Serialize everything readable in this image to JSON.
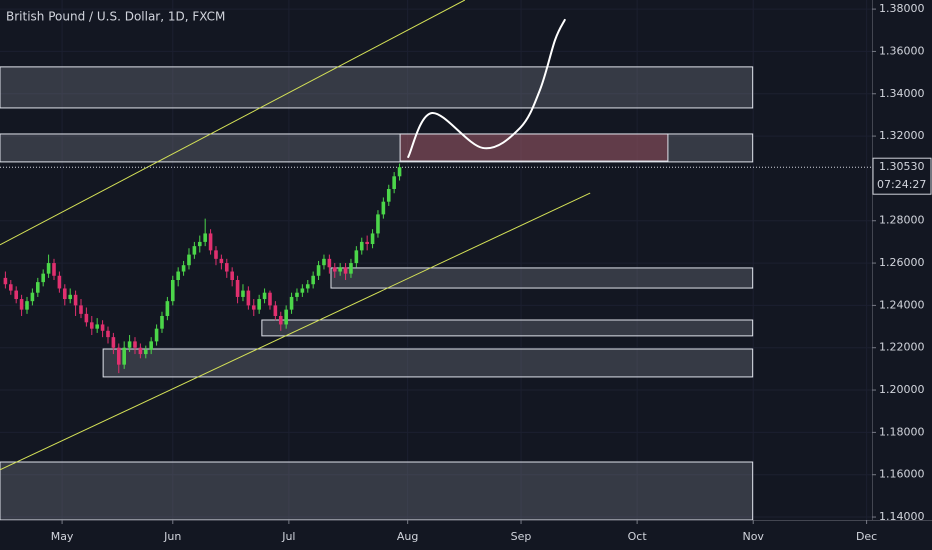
{
  "chart_data": {
    "type": "candlestick",
    "title": "British Pound / U.S. Dollar, 1D, FXCM",
    "ylim": [
      1.1386,
      1.3843
    ],
    "xlim": [
      0,
      161.5
    ],
    "grid": true,
    "up_color": "#4cd64a",
    "down_color": "#e0306f",
    "yticks": [
      {
        "value": 1.38,
        "label": "1.38000"
      },
      {
        "value": 1.36,
        "label": "1.36000"
      },
      {
        "value": 1.34,
        "label": "1.34000"
      },
      {
        "value": 1.32,
        "label": "1.32000"
      },
      {
        "value": 1.28,
        "label": "1.28000"
      },
      {
        "value": 1.26,
        "label": "1.26000"
      },
      {
        "value": 1.24,
        "label": "1.24000"
      },
      {
        "value": 1.22,
        "label": "1.22000"
      },
      {
        "value": 1.2,
        "label": "1.20000"
      },
      {
        "value": 1.18,
        "label": "1.18000"
      },
      {
        "value": 1.16,
        "label": "1.16000"
      },
      {
        "value": 1.14,
        "label": "1.14000"
      }
    ],
    "xticks": [
      {
        "value": 11.5,
        "label": "May"
      },
      {
        "value": 32,
        "label": "Jun"
      },
      {
        "value": 53.5,
        "label": "Jul"
      },
      {
        "value": 75.5,
        "label": "Aug"
      },
      {
        "value": 96.5,
        "label": "Sep"
      },
      {
        "value": 118,
        "label": "Oct"
      },
      {
        "value": 139.5,
        "label": "Nov"
      },
      {
        "value": 160.5,
        "label": "Dec"
      }
    ],
    "current_price": {
      "value": 1.3053,
      "label": "1.30530"
    },
    "countdown": "07:24:27",
    "candles": [
      [
        1.253,
        1.256,
        1.248,
        1.25
      ],
      [
        1.25,
        1.252,
        1.245,
        1.247
      ],
      [
        1.247,
        1.249,
        1.241,
        1.243
      ],
      [
        1.243,
        1.245,
        1.235,
        1.238
      ],
      [
        1.238,
        1.244,
        1.236,
        1.242
      ],
      [
        1.242,
        1.248,
        1.24,
        1.246
      ],
      [
        1.246,
        1.253,
        1.244,
        1.251
      ],
      [
        1.251,
        1.257,
        1.249,
        1.255
      ],
      [
        1.255,
        1.264,
        1.253,
        1.26
      ],
      [
        1.26,
        1.262,
        1.252,
        1.254
      ],
      [
        1.254,
        1.256,
        1.246,
        1.248
      ],
      [
        1.248,
        1.25,
        1.24,
        1.243
      ],
      [
        1.243,
        1.248,
        1.241,
        1.245
      ],
      [
        1.245,
        1.247,
        1.235,
        1.24
      ],
      [
        1.24,
        1.243,
        1.234,
        1.236
      ],
      [
        1.236,
        1.239,
        1.23,
        1.232
      ],
      [
        1.232,
        1.235,
        1.226,
        1.229
      ],
      [
        1.229,
        1.234,
        1.227,
        1.231
      ],
      [
        1.231,
        1.233,
        1.225,
        1.228
      ],
      [
        1.228,
        1.23,
        1.222,
        1.225
      ],
      [
        1.225,
        1.227,
        1.217,
        1.22
      ],
      [
        1.22,
        1.222,
        1.208,
        1.212
      ],
      [
        1.212,
        1.223,
        1.21,
        1.22
      ],
      [
        1.22,
        1.226,
        1.218,
        1.223
      ],
      [
        1.223,
        1.225,
        1.217,
        1.22
      ],
      [
        1.22,
        1.222,
        1.215,
        1.217
      ],
      [
        1.217,
        1.221,
        1.215,
        1.219
      ],
      [
        1.219,
        1.225,
        1.217,
        1.223
      ],
      [
        1.223,
        1.231,
        1.221,
        1.229
      ],
      [
        1.229,
        1.237,
        1.227,
        1.235
      ],
      [
        1.235,
        1.244,
        1.233,
        1.242
      ],
      [
        1.242,
        1.254,
        1.24,
        1.252
      ],
      [
        1.252,
        1.258,
        1.249,
        1.256
      ],
      [
        1.256,
        1.261,
        1.254,
        1.259
      ],
      [
        1.259,
        1.267,
        1.257,
        1.264
      ],
      [
        1.264,
        1.27,
        1.262,
        1.268
      ],
      [
        1.268,
        1.273,
        1.265,
        1.27
      ],
      [
        1.27,
        1.281,
        1.268,
        1.274
      ],
      [
        1.274,
        1.276,
        1.264,
        1.266
      ],
      [
        1.266,
        1.268,
        1.259,
        1.262
      ],
      [
        1.262,
        1.264,
        1.257,
        1.26
      ],
      [
        1.26,
        1.262,
        1.253,
        1.256
      ],
      [
        1.256,
        1.258,
        1.249,
        1.252
      ],
      [
        1.252,
        1.254,
        1.241,
        1.244
      ],
      [
        1.244,
        1.25,
        1.242,
        1.247
      ],
      [
        1.247,
        1.249,
        1.238,
        1.24
      ],
      [
        1.24,
        1.243,
        1.235,
        1.238
      ],
      [
        1.238,
        1.245,
        1.236,
        1.243
      ],
      [
        1.243,
        1.248,
        1.241,
        1.246
      ],
      [
        1.246,
        1.247,
        1.238,
        1.24
      ],
      [
        1.24,
        1.242,
        1.233,
        1.235
      ],
      [
        1.235,
        1.237,
        1.228,
        1.231
      ],
      [
        1.231,
        1.24,
        1.229,
        1.238
      ],
      [
        1.238,
        1.246,
        1.236,
        1.244
      ],
      [
        1.244,
        1.248,
        1.242,
        1.246
      ],
      [
        1.246,
        1.25,
        1.244,
        1.248
      ],
      [
        1.248,
        1.252,
        1.246,
        1.25
      ],
      [
        1.25,
        1.256,
        1.248,
        1.254
      ],
      [
        1.254,
        1.261,
        1.252,
        1.259
      ],
      [
        1.259,
        1.264,
        1.257,
        1.262
      ],
      [
        1.262,
        1.264,
        1.255,
        1.258
      ],
      [
        1.258,
        1.26,
        1.253,
        1.256
      ],
      [
        1.256,
        1.26,
        1.254,
        1.258
      ],
      [
        1.258,
        1.26,
        1.252,
        1.255
      ],
      [
        1.255,
        1.262,
        1.253,
        1.26
      ],
      [
        1.26,
        1.268,
        1.258,
        1.266
      ],
      [
        1.266,
        1.272,
        1.264,
        1.27
      ],
      [
        1.27,
        1.273,
        1.266,
        1.269
      ],
      [
        1.269,
        1.276,
        1.267,
        1.274
      ],
      [
        1.274,
        1.285,
        1.272,
        1.283
      ],
      [
        1.283,
        1.291,
        1.281,
        1.289
      ],
      [
        1.289,
        1.297,
        1.287,
        1.295
      ],
      [
        1.295,
        1.303,
        1.293,
        1.301
      ],
      [
        1.301,
        1.307,
        1.299,
        1.3053
      ]
    ],
    "zones": [
      {
        "x0": 0,
        "x1": 139.4,
        "top": 1.3527,
        "bottom": 1.3333,
        "color": "#787b86"
      },
      {
        "x0": 0,
        "x1": 139.4,
        "top": 1.321,
        "bottom": 1.3078,
        "color": "#787b86"
      },
      {
        "x0": 74.1,
        "x1": 123.7,
        "top": 1.321,
        "bottom": 1.3082,
        "color": "#b2434f"
      },
      {
        "x0": 61.3,
        "x1": 139.4,
        "top": 1.2577,
        "bottom": 1.2482,
        "color": "#787b86"
      },
      {
        "x0": 48.5,
        "x1": 139.4,
        "top": 1.2331,
        "bottom": 1.2256,
        "color": "#787b86"
      },
      {
        "x0": 19.1,
        "x1": 139.4,
        "top": 1.2194,
        "bottom": 1.2062,
        "color": "#787b86"
      },
      {
        "x0": 0,
        "x1": 139.4,
        "top": 1.166,
        "bottom": 1.1386,
        "color": "#787b86"
      }
    ],
    "trend_lines": [
      {
        "x": [
          0,
          86.1
        ],
        "y": [
          1.2686,
          1.3843
        ],
        "color": "#d4e157"
      },
      {
        "x": [
          0,
          109.3
        ],
        "y": [
          1.1623,
          1.2931
        ],
        "color": "#d4e157"
      }
    ],
    "projection": {
      "x": [
        75.6,
        80,
        89.4,
        96.3,
        100,
        102.8,
        104.6
      ],
      "y": [
        1.3101,
        1.3309,
        1.3144,
        1.3238,
        1.3418,
        1.3654,
        1.3749
      ],
      "color": "#ffffff"
    }
  }
}
